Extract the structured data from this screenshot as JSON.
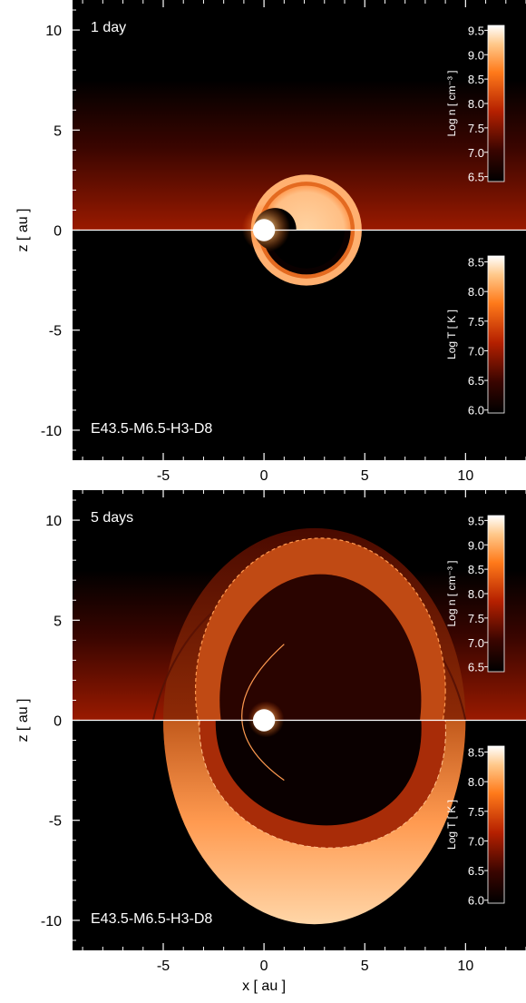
{
  "chart_data": {
    "type": "heatmap",
    "xlabel": "x [ au ]",
    "ylabel": "z [ au ]",
    "xlim": [
      -9.5,
      13
    ],
    "ylim": [
      -11.5,
      11.5
    ],
    "xticks": [
      "-5",
      "0",
      "5",
      "10"
    ],
    "xtick_values": [
      -5,
      0,
      5,
      10
    ],
    "yticks": [
      "10",
      "5",
      "0",
      "-5",
      "-10"
    ],
    "ytick_values": [
      10,
      5,
      0,
      -5,
      -10
    ],
    "colors": {
      "background": "#000000",
      "wind_red": "#8a1200",
      "shell": "#ff9a50",
      "hot": "#ffe2bf",
      "star": "#ffffff"
    },
    "panels": [
      {
        "label": "1 day",
        "model": "E43.5-M6.5-H3-D8",
        "show_xlabel": false,
        "star": {
          "x": 0,
          "z": 0,
          "r": 0.55
        },
        "shell": {
          "cx": 2.1,
          "cz": 0,
          "r": 2.75
        },
        "colorbars": [
          {
            "title": "Log n [ cm⁻³ ]",
            "ticks": [
              "9.5",
              "9.0",
              "8.5",
              "8.0",
              "7.5",
              "7.0",
              "6.5"
            ],
            "tick_values": [
              9.5,
              9.0,
              8.5,
              8.0,
              7.5,
              7.0,
              6.5
            ],
            "range": [
              6.4,
              9.6
            ]
          },
          {
            "title": "Log T [ K ]",
            "ticks": [
              "8.5",
              "8.0",
              "7.5",
              "7.0",
              "6.5",
              "6.0"
            ],
            "tick_values": [
              8.5,
              8.0,
              7.5,
              7.0,
              6.5,
              6.0
            ],
            "range": [
              5.95,
              8.6
            ]
          }
        ]
      },
      {
        "label": "5 days",
        "model": "E43.5-M6.5-H3-D8",
        "show_xlabel": true,
        "star": {
          "x": 0,
          "z": 0,
          "r": 0.55
        },
        "shell": {
          "cx": 2.5,
          "cz": 0,
          "r": 10.0
        },
        "colorbars": [
          {
            "title": "Log n [ cm⁻³ ]",
            "ticks": [
              "9.5",
              "9.0",
              "8.5",
              "8.0",
              "7.5",
              "7.0",
              "6.5"
            ],
            "tick_values": [
              9.5,
              9.0,
              8.5,
              8.0,
              7.5,
              7.0,
              6.5
            ],
            "range": [
              6.4,
              9.6
            ]
          },
          {
            "title": "Log T [ K ]",
            "ticks": [
              "8.5",
              "8.0",
              "7.5",
              "7.0",
              "6.5",
              "6.0"
            ],
            "tick_values": [
              8.5,
              8.0,
              7.5,
              7.0,
              6.5,
              6.0
            ],
            "range": [
              5.95,
              8.6
            ]
          }
        ]
      }
    ]
  }
}
